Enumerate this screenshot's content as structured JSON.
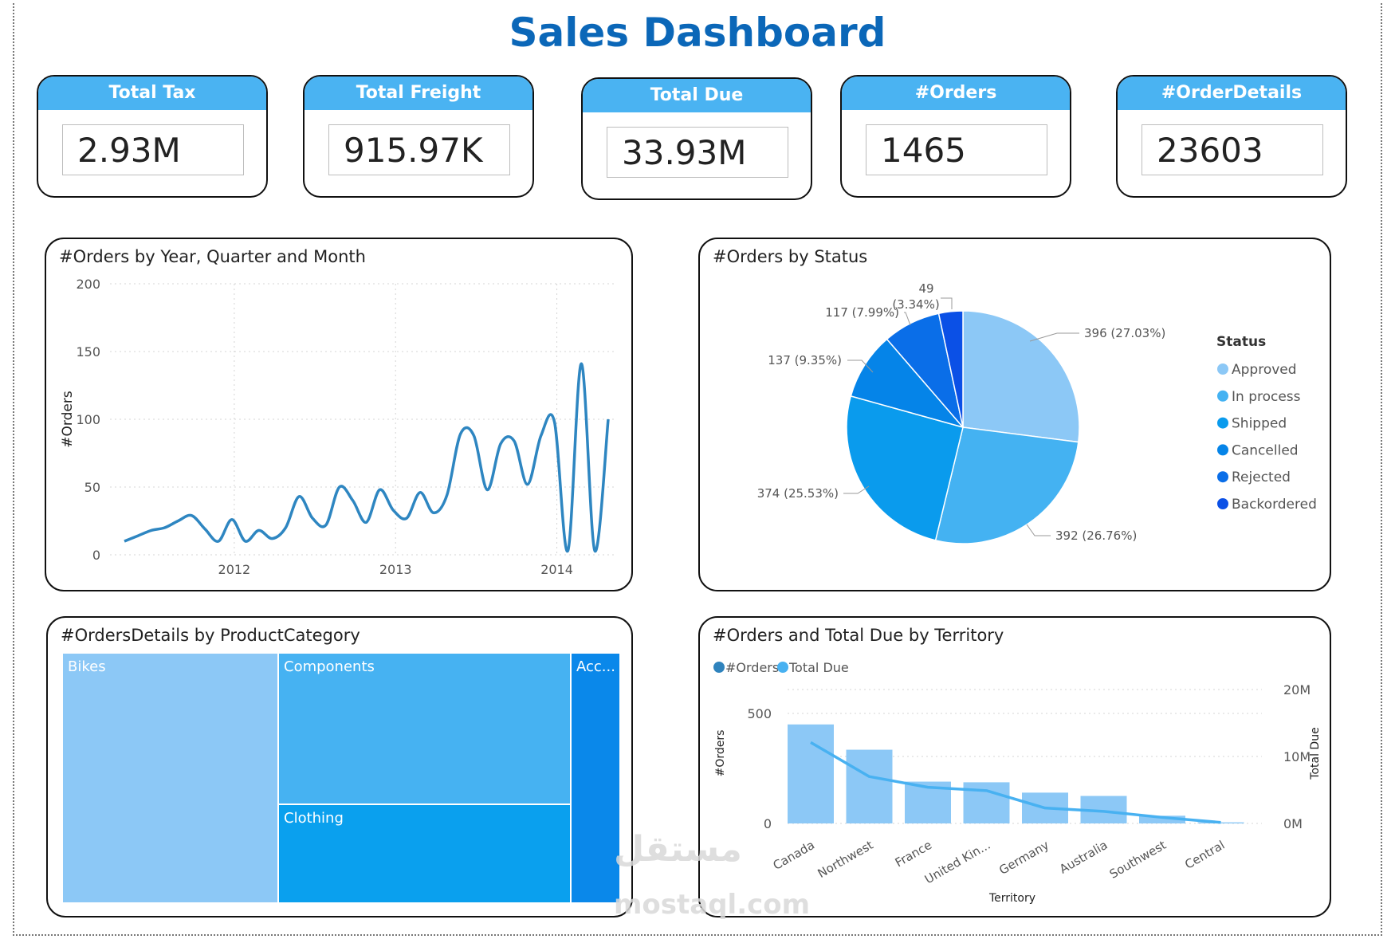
{
  "title": "Sales Dashboard",
  "kpis": [
    {
      "label": "Total Tax",
      "value": "2.93M"
    },
    {
      "label": "Total Freight",
      "value": "915.97K"
    },
    {
      "label": "Total Due",
      "value": "33.93M"
    },
    {
      "label": "#Orders",
      "value": "1465"
    },
    {
      "label": "#OrderDetails",
      "value": "23603"
    }
  ],
  "chart_data": [
    {
      "type": "line",
      "title": "#Orders by Year, Quarter and Month",
      "ylabel": "#Orders",
      "xlabel": "",
      "ylim": [
        0,
        200
      ],
      "yticks": [
        0,
        50,
        100,
        150,
        200
      ],
      "xticks": [
        "2012",
        "2013",
        "2014"
      ],
      "x": [
        "2011-05",
        "2011-06",
        "2011-07",
        "2011-08",
        "2011-09",
        "2011-10",
        "2011-11",
        "2011-12",
        "2012-01",
        "2012-02",
        "2012-03",
        "2012-04",
        "2012-05",
        "2012-06",
        "2012-07",
        "2012-08",
        "2012-09",
        "2012-10",
        "2012-11",
        "2012-12",
        "2013-01",
        "2013-02",
        "2013-03",
        "2013-04",
        "2013-05",
        "2013-06",
        "2013-07",
        "2013-08",
        "2013-09",
        "2013-10",
        "2013-11",
        "2013-12",
        "2014-01",
        "2014-02",
        "2014-03",
        "2014-04",
        "2014-05",
        "2014-06"
      ],
      "values": [
        10,
        14,
        18,
        20,
        25,
        29,
        19,
        10,
        26,
        10,
        18,
        12,
        20,
        43,
        27,
        22,
        50,
        40,
        24,
        48,
        33,
        27,
        46,
        31,
        44,
        89,
        88,
        48,
        82,
        84,
        52,
        88,
        98,
        3,
        141,
        3,
        100,
        null
      ],
      "grid": true,
      "color": "#2e86c1"
    },
    {
      "type": "pie",
      "title": "#Orders by Status",
      "legend_title": "Status",
      "legend_position": "right",
      "slices": [
        {
          "name": "Approved",
          "value": 396,
          "label": "396 (27.03%)",
          "color": "#8cc8f6"
        },
        {
          "name": "In process",
          "value": 392,
          "label": "392 (26.76%)",
          "color": "#44b2f2"
        },
        {
          "name": "Shipped",
          "value": 374,
          "label": "374 (25.53%)",
          "color": "#0a9bed"
        },
        {
          "name": "Cancelled",
          "value": 137,
          "label": "137 (9.35%)",
          "color": "#0584e8"
        },
        {
          "name": "Rejected",
          "value": 117,
          "label": "117 (7.99%)",
          "color": "#0a6ee8"
        },
        {
          "name": "Backordered",
          "value": 49,
          "label": "49",
          "label2": "(3.34%)",
          "color": "#0b50e6"
        }
      ]
    },
    {
      "type": "treemap",
      "title": "#OrdersDetails by ProductCategory",
      "items": [
        {
          "name": "Bikes",
          "color": "#8cc8f6"
        },
        {
          "name": "Components",
          "color": "#46b2f2"
        },
        {
          "name": "Clothing",
          "color": "#0aa0ee"
        },
        {
          "name": "Acc...",
          "color": "#0a88ea"
        }
      ]
    },
    {
      "type": "bar",
      "title": "#Orders and Total Due by Territory",
      "legend": [
        {
          "name": "#Orders",
          "color": "#2f83bd"
        },
        {
          "name": "Total Due",
          "color": "#48b1f1"
        }
      ],
      "categories": [
        "Canada",
        "Northwest",
        "France",
        "United Kin...",
        "Germany",
        "Australia",
        "Southwest",
        "Central",
        ""
      ],
      "xlabel": "Territory",
      "ylabel": "#Orders",
      "y2label": "Total Due",
      "yticks": [
        "0",
        "500"
      ],
      "y2ticks": [
        "0M",
        "10M",
        "20M"
      ],
      "ylim": [
        0,
        500
      ],
      "y2lim": [
        0,
        20
      ],
      "series": [
        {
          "name": "#Orders",
          "values": [
            450,
            335,
            190,
            187,
            140,
            125,
            35,
            5,
            0
          ]
        },
        {
          "name": "Total Due",
          "values": [
            12.1,
            7.0,
            5.4,
            4.9,
            2.3,
            1.8,
            0.9,
            0.15,
            0
          ]
        }
      ]
    }
  ],
  "watermark": {
    "arabic": "مستقل",
    "latin": "mostaql.com"
  }
}
